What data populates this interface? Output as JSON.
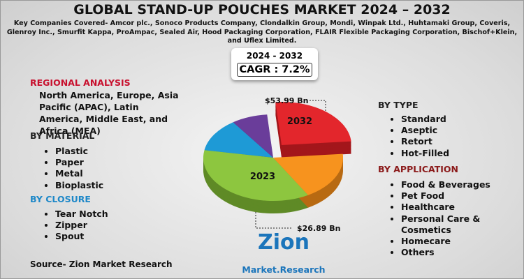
{
  "header": {
    "title": "GLOBAL STAND-UP POUCHES MARKET 2024 – 2032",
    "companies": "Key Companies Covered- Amcor plc., Sonoco Products Company, Clondalkin Group, Mondi, Winpak Ltd., Huhtamaki Group, Coveris, Glenroy Inc., Smurfit Kappa, ProAmpac, Sealed Air, Hood Packaging Corporation, FLAIR Flexible Packaging Corporation, Bischof+Klein, and Uflex Limited."
  },
  "cagr": {
    "period": "2024 - 2032",
    "value": "CAGR : 7.2%"
  },
  "regional": {
    "heading": "REGIONAL ANALYSIS",
    "text": "North America, Europe, Asia Pacific (APAC), Latin America, Middle East, and Africa (MEA)"
  },
  "material": {
    "heading": "BY MATERIAL",
    "items": [
      "Plastic",
      "Paper",
      "Metal",
      "Bioplastic"
    ]
  },
  "closure": {
    "heading": "BY CLOSURE",
    "items": [
      "Tear Notch",
      "Zipper",
      "Spout"
    ]
  },
  "type": {
    "heading": "BY TYPE",
    "items": [
      "Standard",
      "Aseptic",
      "Retort",
      "Hot-Filled"
    ]
  },
  "application": {
    "heading": "BY APPLICATION",
    "items": [
      "Food & Beverages",
      "Pet Food",
      "Healthcare",
      "Personal Care & Cosmetics",
      "Homecare",
      "Others"
    ]
  },
  "pie": {
    "label_2032": "2032",
    "label_2023": "2023",
    "value_2032": "$53.99 Bn",
    "value_2023": "$26.89 Bn"
  },
  "source": "Source- Zion Market Research",
  "logo": {
    "name": "Zion",
    "tagline": "Market.Research"
  }
}
